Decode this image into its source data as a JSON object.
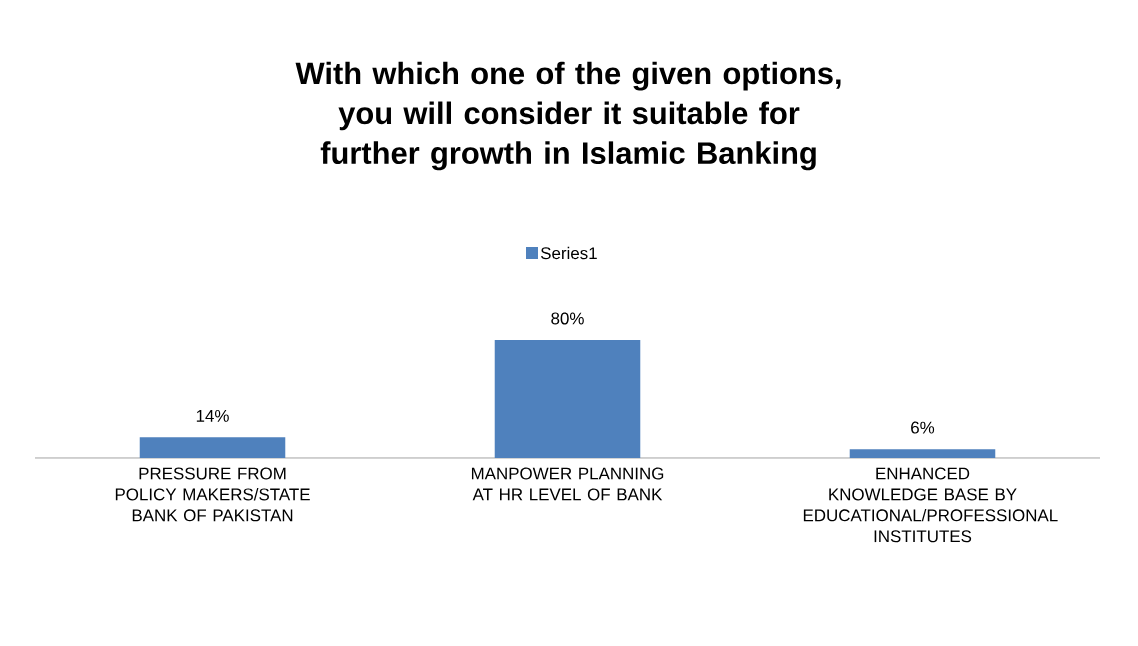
{
  "chart_data": {
    "type": "bar",
    "title": "With which one of the given options, you will consider it suitable for further growth in Islamic Banking",
    "categories": [
      "PRESSURE FROM POLICY MAKERS/STATE BANK OF PAKISTAN",
      "MANPOWER PLANNING AT HR LEVEL OF BANK",
      "ENHANCED KNOWLEDGE BASE BY EDUCATIONAL/PROFESSIONAL INSTITUTES"
    ],
    "series": [
      {
        "name": "Series1",
        "color": "#4f81bd",
        "values": [
          14,
          80,
          6
        ],
        "value_labels": [
          "14%",
          "80%",
          "6%"
        ]
      }
    ],
    "legend": "top"
  }
}
